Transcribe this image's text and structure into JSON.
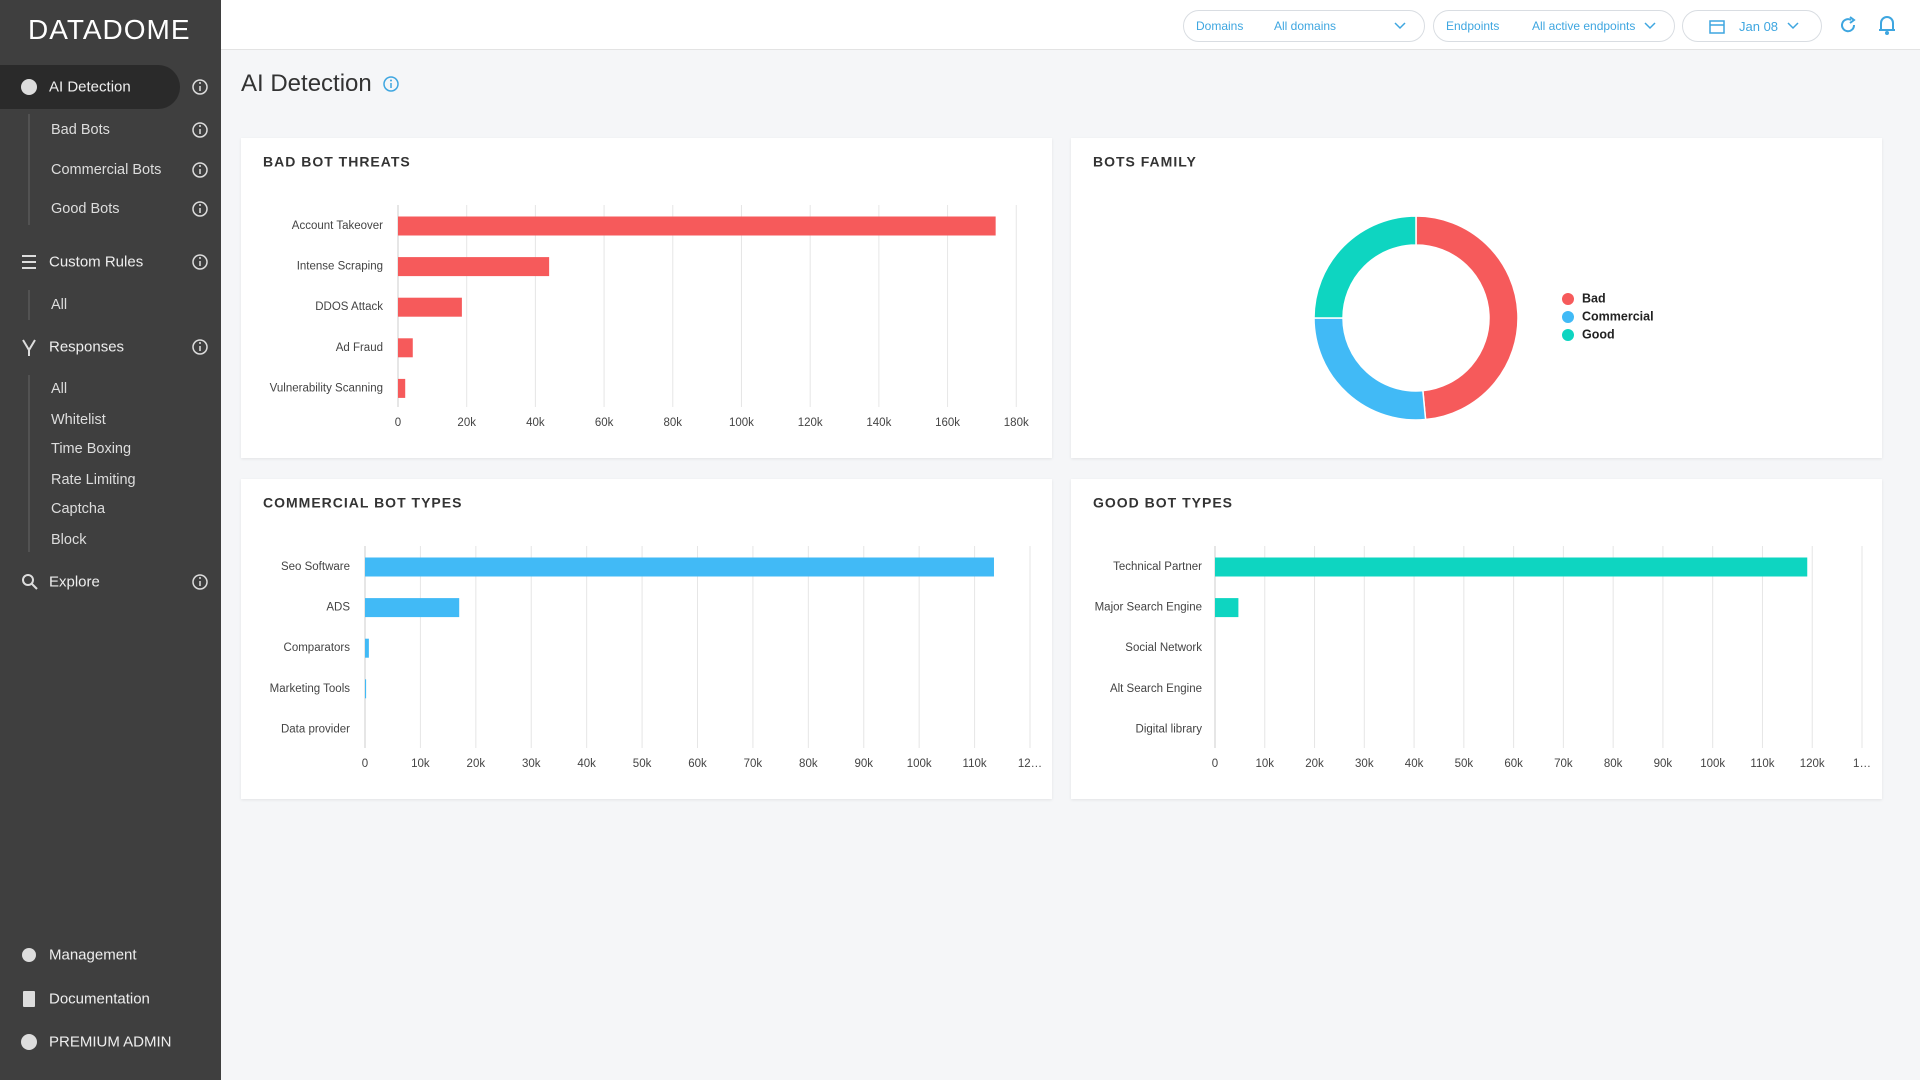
{
  "sidebar": {
    "logo": "DATADOME",
    "menu": [
      "AI Detection",
      "Bad Bots",
      "Commercial Bots",
      "Good Bots",
      "Custom Rules",
      "All",
      "Responses",
      "All",
      "Whitelist",
      "Time Boxing",
      "Rate Limiting",
      "Captcha",
      "Block",
      "Explore"
    ],
    "footer": [
      "Management",
      "Documentation",
      "PREMIUM ADMIN"
    ]
  },
  "header": {
    "filters": [
      {
        "label": "Domains",
        "value": "All domains"
      },
      {
        "label": "Endpoints",
        "value": "All active endpoints"
      }
    ],
    "date": "Jan 08"
  },
  "page_title": "AI Detection",
  "chart_data": [
    {
      "type": "bar",
      "orientation": "horizontal",
      "title": "BAD BOT THREATS",
      "categories": [
        "Account Takeover",
        "Intense Scraping",
        "DDOS Attack",
        "Ad Fraud",
        "Vulnerability Scanning"
      ],
      "values": [
        174000,
        44000,
        18600,
        4300,
        2100
      ],
      "color": "#f65a5b",
      "xlim": [
        0,
        184000
      ],
      "xticks": [
        0,
        {
          "value": 20000,
          "label": "20k"
        },
        {
          "value": 40000,
          "label": "40k"
        },
        {
          "value": 60000,
          "label": "60k"
        },
        {
          "value": 80000,
          "label": "80k"
        },
        {
          "value": 100000,
          "label": "100k"
        },
        {
          "value": 120000,
          "label": "120k"
        },
        {
          "value": 140000,
          "label": "140k"
        },
        {
          "value": 160000,
          "label": "160k"
        },
        {
          "value": 180000,
          "label": "180k"
        }
      ],
      "grid": true
    },
    {
      "type": "pie",
      "donut": true,
      "title": "BOTS FAMILY",
      "categories": [
        "Bad",
        "Commercial",
        "Good"
      ],
      "values": [
        48.5,
        26.5,
        25
      ],
      "colors": [
        "#f65a5b",
        "#41baf6",
        "#0ed5c1"
      ],
      "legend": "right"
    },
    {
      "type": "bar",
      "orientation": "horizontal",
      "title": "COMMERCIAL BOT TYPES",
      "categories": [
        "Seo Software",
        "ADS",
        "Comparators",
        "Marketing Tools",
        "Data provider"
      ],
      "values": [
        113500,
        17000,
        700,
        200,
        0
      ],
      "color": "#41baf6",
      "xlim": [
        0,
        120000
      ],
      "xticks": [
        0,
        {
          "value": 10000,
          "label": "10k"
        },
        {
          "value": 20000,
          "label": "20k"
        },
        {
          "value": 30000,
          "label": "30k"
        },
        {
          "value": 40000,
          "label": "40k"
        },
        {
          "value": 50000,
          "label": "50k"
        },
        {
          "value": 60000,
          "label": "60k"
        },
        {
          "value": 70000,
          "label": "70k"
        },
        {
          "value": 80000,
          "label": "80k"
        },
        {
          "value": 90000,
          "label": "90k"
        },
        {
          "value": 100000,
          "label": "100k"
        },
        {
          "value": 110000,
          "label": "110k"
        },
        {
          "value": 120000,
          "label": "12…"
        }
      ],
      "grid": true
    },
    {
      "type": "bar",
      "orientation": "horizontal",
      "title": "GOOD BOT TYPES",
      "categories": [
        "Technical Partner",
        "Major Search Engine",
        "Social Network",
        "Alt Search Engine",
        "Digital library"
      ],
      "values": [
        119000,
        4700,
        0,
        0,
        0
      ],
      "color": "#0ed5c1",
      "xlim": [
        0,
        130000
      ],
      "xticks": [
        0,
        {
          "value": 10000,
          "label": "10k"
        },
        {
          "value": 20000,
          "label": "20k"
        },
        {
          "value": 30000,
          "label": "30k"
        },
        {
          "value": 40000,
          "label": "40k"
        },
        {
          "value": 50000,
          "label": "50k"
        },
        {
          "value": 60000,
          "label": "60k"
        },
        {
          "value": 70000,
          "label": "70k"
        },
        {
          "value": 80000,
          "label": "80k"
        },
        {
          "value": 90000,
          "label": "90k"
        },
        {
          "value": 100000,
          "label": "100k"
        },
        {
          "value": 110000,
          "label": "110k"
        },
        {
          "value": 120000,
          "label": "120k"
        },
        {
          "value": 130000,
          "label": "1…"
        }
      ],
      "grid": true
    }
  ]
}
